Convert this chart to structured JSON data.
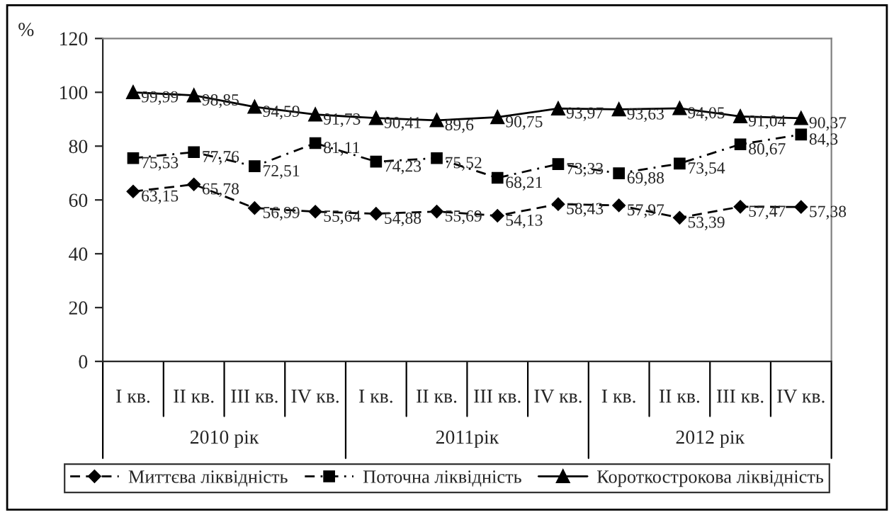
{
  "chart_data": {
    "type": "line",
    "ylabel": "%",
    "categories": [
      "I кв.",
      "II кв.",
      "III кв.",
      "IV кв.",
      "I кв.",
      "II кв.",
      "III кв.",
      "IV кв.",
      "I кв.",
      "II кв.",
      "III кв.",
      "IV кв."
    ],
    "annotations": [
      "2010 рік",
      "2011рік",
      "2012 рік"
    ],
    "series": [
      {
        "name": "Миттєва ліквідність",
        "color": "#000000",
        "marker": "diamond",
        "line_style": "dashed",
        "values": [
          63.15,
          65.78,
          56.99,
          55.64,
          54.88,
          55.69,
          54.13,
          58.43,
          57.97,
          53.39,
          57.47,
          57.38
        ],
        "value_labels": [
          "63,15",
          "65,78",
          "56,99",
          "55,64",
          "54,88",
          "55,69",
          "54,13",
          "58,43",
          "57,97",
          "53,39",
          "57,47",
          "57,38"
        ]
      },
      {
        "name": "Поточна ліквідність",
        "color": "#000000",
        "marker": "square",
        "line_style": "dotted",
        "values": [
          75.53,
          77.76,
          72.51,
          81.11,
          74.23,
          75.52,
          68.21,
          73.33,
          69.88,
          73.54,
          80.67,
          84.3
        ],
        "value_labels": [
          "75,53",
          "77,76",
          "72,51",
          "81,11",
          "74,23",
          "75,52",
          "68,21",
          "73,33",
          "69,88",
          "73,54",
          "80,67",
          "84,3"
        ]
      },
      {
        "name": "Короткострокова ліквідність",
        "color": "#000000",
        "marker": "triangle",
        "line_style": "solid",
        "values": [
          99.99,
          98.85,
          94.59,
          91.73,
          90.41,
          89.6,
          90.75,
          93.97,
          93.63,
          94.05,
          91.04,
          90.37
        ],
        "value_labels": [
          "99,99",
          "98,85",
          "94,59",
          "91,73",
          "90,41",
          "89,6",
          "90,75",
          "93,97",
          "93,63",
          "94,05",
          "91,04",
          "90,37"
        ]
      }
    ],
    "ylim": [
      0,
      120
    ],
    "yticks": [
      0,
      20,
      40,
      60,
      80,
      100,
      120
    ],
    "grid": false,
    "legend": "bottom"
  }
}
